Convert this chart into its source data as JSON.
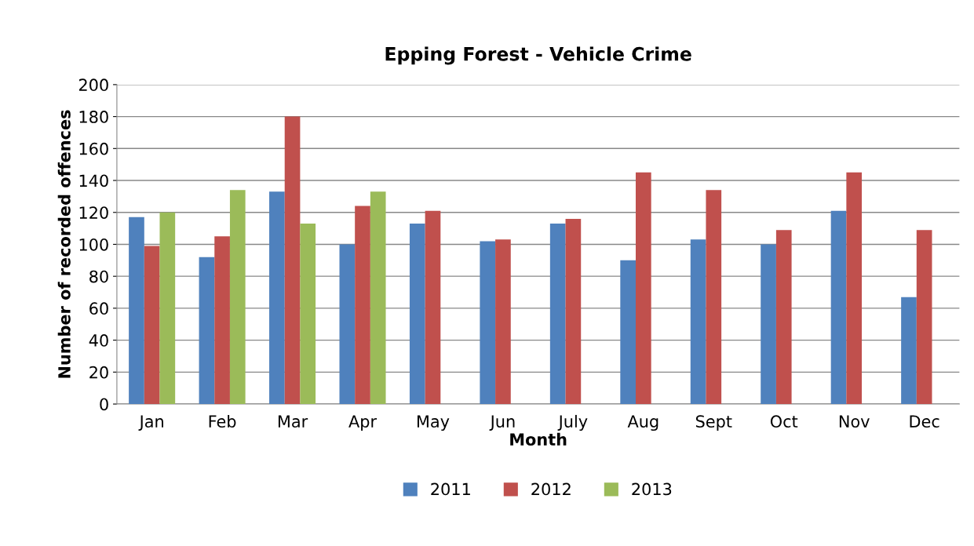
{
  "chart_data": {
    "type": "bar",
    "title": "Epping Forest - Vehicle Crime",
    "xlabel": "Month",
    "ylabel": "Number of recorded offences",
    "categories": [
      "Jan",
      "Feb",
      "Mar",
      "Apr",
      "May",
      "Jun",
      "July",
      "Aug",
      "Sept",
      "Oct",
      "Nov",
      "Dec"
    ],
    "series": [
      {
        "name": "2011",
        "color": "#4f81bd",
        "values": [
          117,
          92,
          133,
          100,
          113,
          102,
          113,
          90,
          103,
          100,
          121,
          67
        ]
      },
      {
        "name": "2012",
        "color": "#c0504d",
        "values": [
          99,
          105,
          180,
          124,
          121,
          103,
          116,
          145,
          134,
          109,
          145,
          109
        ]
      },
      {
        "name": "2013",
        "color": "#9bbb59",
        "values": [
          120,
          134,
          113,
          133,
          null,
          null,
          null,
          null,
          null,
          null,
          null,
          null
        ]
      }
    ],
    "ylim": [
      0,
      200
    ],
    "yticks": [
      0,
      20,
      40,
      60,
      80,
      100,
      120,
      140,
      160,
      180,
      200
    ],
    "grid": "y",
    "legend": "bottom"
  }
}
